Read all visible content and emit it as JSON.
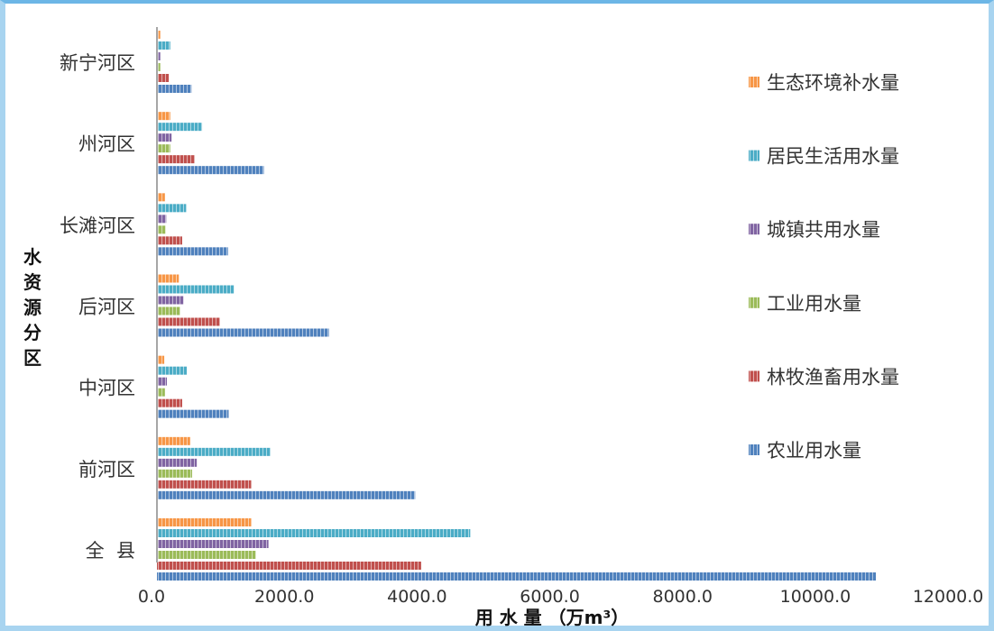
{
  "chart_data": {
    "type": "bar",
    "orientation": "horizontal",
    "categories": [
      "新宁河区",
      "州河区",
      "长滩河区",
      "后河区",
      "中河区",
      "前河区",
      "全  县"
    ],
    "series": [
      {
        "name": "生态环境补水量",
        "color": "#f79646",
        "values": [
          50,
          200,
          120,
          330,
          110,
          500,
          1420
        ]
      },
      {
        "name": "居民生活用水量",
        "color": "#4bacc6",
        "values": [
          200,
          680,
          440,
          1160,
          450,
          1710,
          4720
        ]
      },
      {
        "name": "城镇共用水量",
        "color": "#8064a2",
        "values": [
          50,
          220,
          140,
          400,
          150,
          600,
          1680
        ]
      },
      {
        "name": "工业用水量",
        "color": "#9bbb59",
        "values": [
          50,
          200,
          130,
          350,
          120,
          530,
          1490
        ]
      },
      {
        "name": "林牧渔畜用水量",
        "color": "#c0504d",
        "values": [
          180,
          570,
          380,
          950,
          380,
          1420,
          3980
        ]
      },
      {
        "name": "农业用水量",
        "color": "#4f81bd",
        "values": [
          520,
          1610,
          1070,
          2590,
          1080,
          3890,
          10830
        ]
      }
    ],
    "legend_order": [
      "生态环境补水量",
      "居民生活用水量",
      "城镇共用水量",
      "工业用水量",
      "林牧渔畜用水量",
      "农业用水量"
    ],
    "x_ticks": [
      "0.0",
      "2000.0",
      "4000.0",
      "6000.0",
      "8000.0",
      "10000.0",
      "12000.0"
    ],
    "xlim": [
      0,
      12000
    ],
    "xlabel": "用 水 量 （万m³）",
    "ylabel": "水资源分区",
    "legend_position": "right",
    "grid": false
  }
}
